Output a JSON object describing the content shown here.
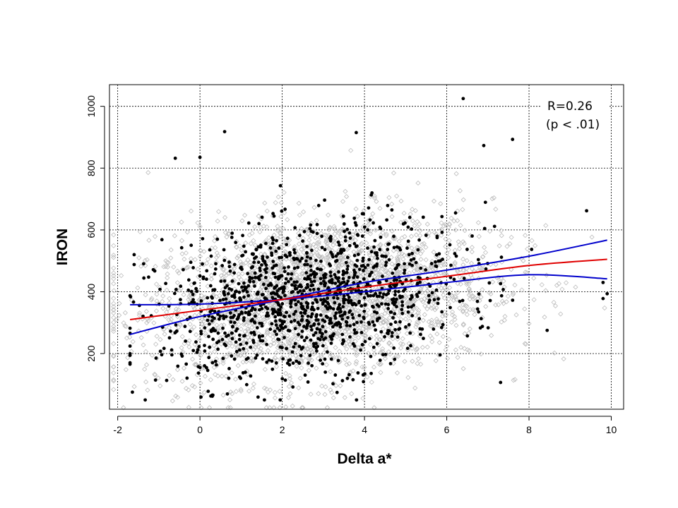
{
  "chart_data": {
    "type": "scatter",
    "xlabel": "Delta a*",
    "ylabel": "IRON",
    "xlim": [
      -2.2,
      10.3
    ],
    "ylim": [
      20,
      1070
    ],
    "x_ticks": [
      -2,
      0,
      2,
      4,
      6,
      8,
      10
    ],
    "y_ticks": [
      200,
      400,
      600,
      800,
      1000
    ],
    "grid": true,
    "annotation": {
      "line1": "R=0.26",
      "line2": "(p < .01)"
    },
    "colors": {
      "background_points": "#bdbdbd",
      "foreground_points": "#000000",
      "fit_line": "#e00000",
      "confidence_band": "#0000cc"
    },
    "series": [
      {
        "role": "background",
        "marker": "open-diamond",
        "distribution": {
          "n": 2600,
          "x_mean": 2.9,
          "x_sd": 2.1,
          "y_intercept": 340,
          "y_slope": 14,
          "y_sd": 130,
          "x_range": [
            -2.1,
            10.2
          ],
          "y_range": [
            25,
            1055
          ]
        }
      },
      {
        "role": "foreground",
        "marker": "filled-circle",
        "distribution": {
          "n": 1250,
          "x_mean": 2.7,
          "x_sd": 1.8,
          "y_intercept": 330,
          "y_slope": 17,
          "y_sd": 115,
          "x_range": [
            -1.7,
            9.9
          ],
          "y_range": [
            50,
            1030
          ]
        },
        "points": [
          {
            "x": 6.4,
            "y": 1025
          },
          {
            "x": 0.6,
            "y": 918
          },
          {
            "x": 3.8,
            "y": 915
          },
          {
            "x": 0.0,
            "y": 835
          },
          {
            "x": -0.6,
            "y": 832
          },
          {
            "x": 7.6,
            "y": 893
          },
          {
            "x": 6.9,
            "y": 873
          },
          {
            "x": 9.4,
            "y": 662
          },
          {
            "x": 9.8,
            "y": 430
          },
          {
            "x": 9.8,
            "y": 378
          },
          {
            "x": -1.6,
            "y": 520
          },
          {
            "x": -1.6,
            "y": 488
          },
          {
            "x": 0.3,
            "y": 62
          },
          {
            "x": 0.2,
            "y": 78
          },
          {
            "x": 0.7,
            "y": 120
          }
        ]
      },
      {
        "name": "fit",
        "type": "line",
        "x": [
          -1.7,
          0,
          2,
          4,
          6,
          8,
          9.9
        ],
        "y": [
          310,
          340,
          375,
          415,
          450,
          485,
          505
        ]
      },
      {
        "name": "upper",
        "type": "line",
        "x": [
          -1.7,
          0,
          2,
          4,
          6,
          8,
          9.9
        ],
        "y": [
          262,
          320,
          375,
          430,
          470,
          515,
          567
        ]
      },
      {
        "name": "lower",
        "type": "line",
        "x": [
          -1.7,
          0,
          2,
          4,
          6,
          8,
          9.9
        ],
        "y": [
          358,
          360,
          375,
          400,
          430,
          455,
          442
        ]
      }
    ]
  }
}
